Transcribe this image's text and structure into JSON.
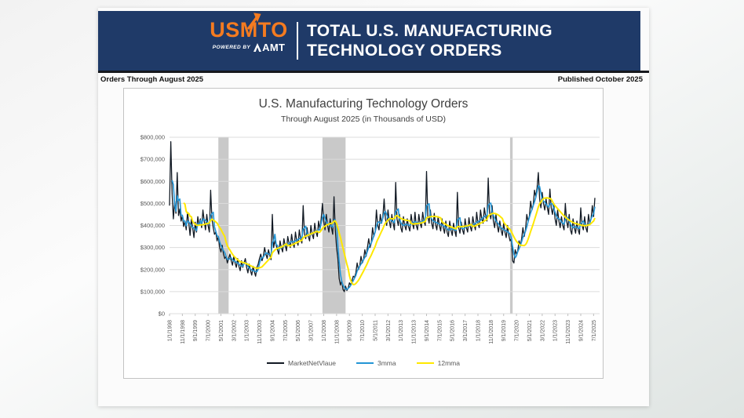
{
  "header": {
    "logo_text": "USMTO",
    "powered_by": "POWERED BY",
    "amt": "AMT",
    "title_line1": "TOTAL U.S. MANUFACTURING",
    "title_line2": "TECHNOLOGY ORDERS",
    "bg_color": "#1f3a68",
    "logo_color": "#f47b20"
  },
  "meta": {
    "orders_through": "Orders Through August 2025",
    "published": "Published October 2025"
  },
  "chart_data": {
    "type": "line",
    "title": "U.S. Manufacturing Technology Orders",
    "subtitle": "Through August 2025 (in Thousands of USD)",
    "x_start": "1/1/1998",
    "x_end": "8/1/2025",
    "frequency": "monthly",
    "grid": true,
    "legend_position": "bottom",
    "ylim": [
      0,
      800000
    ],
    "y_tick_labels": [
      "$0",
      "$100,000",
      "$200,000",
      "$300,000",
      "$400,000",
      "$500,000",
      "$600,000",
      "$700,000",
      "$800,000"
    ],
    "x_tick_every_months": 10,
    "x_tick_labels": [
      "1/1/1998",
      "11/1/1998",
      "9/1/1999",
      "7/1/2000",
      "5/1/2001",
      "3/1/2002",
      "1/1/2003",
      "11/1/2003",
      "9/1/2004",
      "7/1/2005",
      "5/1/2006",
      "3/1/2007",
      "1/1/2008",
      "11/1/2008",
      "9/1/2009",
      "7/1/2010",
      "5/1/2011",
      "3/1/2012",
      "1/1/2013",
      "11/1/2013",
      "9/1/2014",
      "7/1/2015",
      "5/1/2016",
      "3/1/2017",
      "1/1/2018",
      "11/1/2018",
      "9/1/2019",
      "7/1/2020",
      "5/1/2021",
      "3/1/2022",
      "1/1/2023",
      "11/1/2023",
      "9/1/2024",
      "7/1/2025"
    ],
    "recession_bands": [
      {
        "from": "3/1/2001",
        "to": "11/1/2001",
        "from_index": 38,
        "to_index": 46
      },
      {
        "from": "12/1/2007",
        "to": "6/1/2009",
        "from_index": 119,
        "to_index": 137
      },
      {
        "from": "2/1/2020",
        "to": "4/1/2020",
        "from_index": 265,
        "to_index": 267
      }
    ],
    "band_color": "#c9c9c9",
    "grid_color": "#dcdcdc",
    "axis_text_color": "#595959",
    "series": [
      {
        "name": "MarketNetVlaue",
        "color": "#121a24",
        "values": [
          490000,
          780000,
          545000,
          430000,
          510000,
          455000,
          640000,
          445000,
          475000,
          420000,
          445000,
          395000,
          420000,
          380000,
          460000,
          410000,
          355000,
          430000,
          390000,
          345000,
          415000,
          370000,
          440000,
          400000,
          430000,
          390000,
          470000,
          420000,
          380000,
          450000,
          400000,
          370000,
          560000,
          430000,
          390000,
          360000,
          370000,
          330000,
          350000,
          300000,
          280000,
          310000,
          270000,
          250000,
          260000,
          230000,
          250000,
          270000,
          240000,
          220000,
          260000,
          230000,
          210000,
          250000,
          215000,
          195000,
          240000,
          210000,
          230000,
          250000,
          210000,
          185000,
          225000,
          195000,
          175000,
          215000,
          190000,
          170000,
          210000,
          225000,
          250000,
          270000,
          240000,
          260000,
          300000,
          270000,
          250000,
          290000,
          265000,
          245000,
          450000,
          300000,
          330000,
          310000,
          290000,
          270000,
          330000,
          300000,
          280000,
          340000,
          310000,
          285000,
          350000,
          320000,
          300000,
          360000,
          320000,
          300000,
          370000,
          330000,
          310000,
          380000,
          340000,
          320000,
          490000,
          360000,
          340000,
          390000,
          350000,
          330000,
          400000,
          360000,
          340000,
          410000,
          370000,
          350000,
          420000,
          380000,
          430000,
          500000,
          420000,
          380000,
          450000,
          400000,
          370000,
          430000,
          390000,
          360000,
          530000,
          380000,
          300000,
          250000,
          160000,
          130000,
          150000,
          110000,
          100000,
          125000,
          105000,
          115000,
          140000,
          130000,
          150000,
          170000,
          165000,
          185000,
          230000,
          200000,
          215000,
          260000,
          230000,
          245000,
          290000,
          260000,
          300000,
          340000,
          300000,
          320000,
          390000,
          350000,
          370000,
          470000,
          400000,
          380000,
          450000,
          410000,
          440000,
          520000,
          430000,
          400000,
          470000,
          420000,
          390000,
          450000,
          410000,
          380000,
          595000,
          430000,
          400000,
          450000,
          390000,
          370000,
          440000,
          400000,
          380000,
          430000,
          395000,
          375000,
          450000,
          410000,
          385000,
          460000,
          400000,
          380000,
          450000,
          410000,
          390000,
          460000,
          420000,
          400000,
          645000,
          440000,
          410000,
          470000,
          410000,
          385000,
          455000,
          405000,
          380000,
          440000,
          400000,
          375000,
          430000,
          390000,
          365000,
          420000,
          370000,
          350000,
          420000,
          380000,
          355000,
          410000,
          375000,
          350000,
          550000,
          390000,
          365000,
          415000,
          380000,
          360000,
          430000,
          390000,
          370000,
          435000,
          395000,
          375000,
          440000,
          405000,
          380000,
          460000,
          410000,
          390000,
          470000,
          430000,
          410000,
          480000,
          440000,
          420000,
          615000,
          460000,
          430000,
          490000,
          420000,
          390000,
          450000,
          400000,
          370000,
          420000,
          380000,
          355000,
          410000,
          370000,
          345000,
          400000,
          355000,
          330000,
          340000,
          240000,
          230000,
          290000,
          270000,
          285000,
          330000,
          310000,
          340000,
          390000,
          350000,
          380000,
          450000,
          420000,
          440000,
          510000,
          470000,
          490000,
          560000,
          530000,
          570000,
          640000,
          520000,
          480000,
          550000,
          500000,
          470000,
          520000,
          480000,
          450000,
          565000,
          480000,
          450000,
          500000,
          430000,
          400000,
          470000,
          420000,
          390000,
          440000,
          400000,
          380000,
          500000,
          420000,
          390000,
          450000,
          380000,
          360000,
          430000,
          390000,
          365000,
          420000,
          380000,
          360000,
          480000,
          400000,
          380000,
          440000,
          390000,
          370000,
          450000,
          410000,
          430000,
          490000,
          440000,
          525000
        ]
      },
      {
        "name": "3mma",
        "color": "#2395d5",
        "derived": "3-month moving average of MarketNetVlaue"
      },
      {
        "name": "12mma",
        "color": "#ffe800",
        "derived": "12-month moving average of MarketNetVlaue"
      }
    ]
  }
}
